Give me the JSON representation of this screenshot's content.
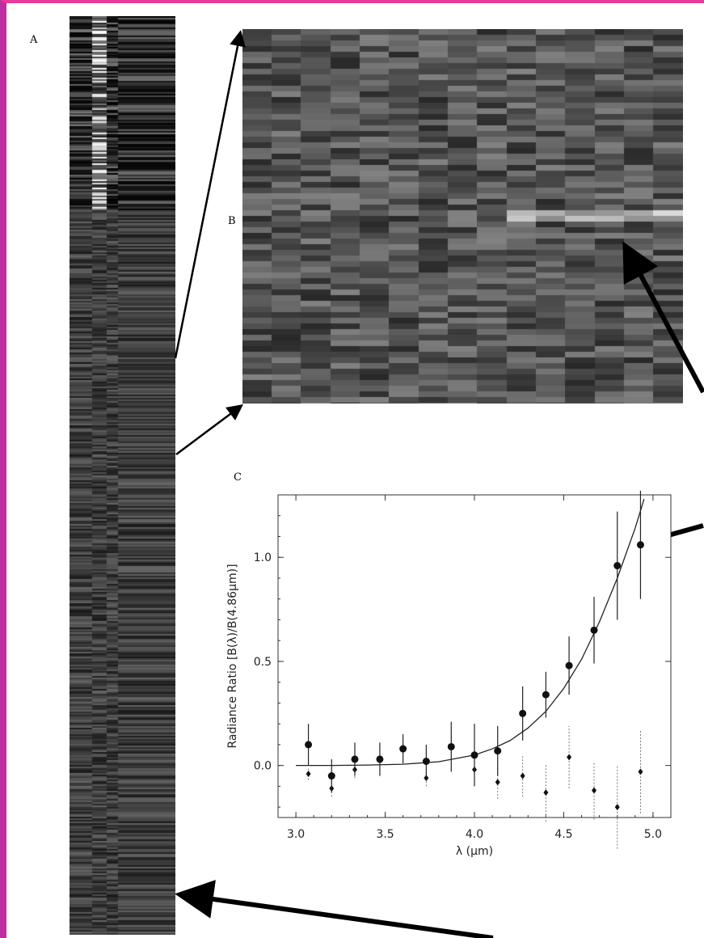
{
  "labels": {
    "panel_a": "A",
    "panel_b": "B",
    "panel_c": "C"
  },
  "colors": {
    "frame_left": "#c02fa0",
    "frame_top": "#e83a9a",
    "strip_bg": "#111111",
    "arrow": "#000000"
  },
  "chart_data": {
    "type": "scatter",
    "xlabel": "λ (μm)",
    "ylabel": "Radiance Ratio [B(λ)/B(4.86μm)]",
    "xlim": [
      2.9,
      5.1
    ],
    "ylim": [
      -0.25,
      1.3
    ],
    "xticks": [
      "3.0",
      "3.5",
      "4.0",
      "4.5",
      "5.0"
    ],
    "yticks": [
      "0.0",
      "0.5",
      "1.0"
    ],
    "xtick_values": [
      3.0,
      3.5,
      4.0,
      4.5,
      5.0
    ],
    "ytick_values": [
      0.0,
      0.5,
      1.0
    ],
    "grid": false,
    "series": [
      {
        "marker": "circle",
        "x": [
          3.07,
          3.2,
          3.33,
          3.47,
          3.6,
          3.73,
          3.87,
          4.0,
          4.13,
          4.27,
          4.4,
          4.53,
          4.67,
          4.8,
          4.93
        ],
        "y": [
          0.1,
          -0.05,
          0.03,
          0.03,
          0.08,
          0.02,
          0.09,
          0.05,
          0.07,
          0.25,
          0.34,
          0.48,
          0.65,
          0.96,
          1.06
        ],
        "err": [
          0.1,
          0.08,
          0.08,
          0.08,
          0.07,
          0.08,
          0.12,
          0.15,
          0.12,
          0.13,
          0.11,
          0.14,
          0.16,
          0.26,
          0.26
        ]
      },
      {
        "marker": "diamond",
        "x": [
          3.07,
          3.2,
          3.33,
          3.47,
          3.6,
          3.73,
          3.87,
          4.0,
          4.13,
          4.27,
          4.4,
          4.53,
          4.67,
          4.8,
          4.93
        ],
        "y": [
          -0.04,
          -0.11,
          -0.02,
          0.03,
          0.08,
          -0.06,
          0.09,
          -0.02,
          -0.08,
          -0.05,
          -0.13,
          0.04,
          -0.12,
          -0.2,
          -0.03
        ],
        "err": [
          0.03,
          0.04,
          0.04,
          0.03,
          0.03,
          0.04,
          0.05,
          0.06,
          0.08,
          0.1,
          0.14,
          0.15,
          0.14,
          0.2,
          0.2
        ]
      }
    ],
    "fit_curve": {
      "x": [
        3.0,
        3.2,
        3.4,
        3.6,
        3.8,
        4.0,
        4.1,
        4.2,
        4.3,
        4.4,
        4.5,
        4.6,
        4.7,
        4.8,
        4.9,
        4.95
      ],
      "y": [
        0.0,
        0.0,
        0.002,
        0.006,
        0.018,
        0.05,
        0.08,
        0.12,
        0.18,
        0.26,
        0.37,
        0.51,
        0.69,
        0.9,
        1.14,
        1.28
      ]
    }
  }
}
